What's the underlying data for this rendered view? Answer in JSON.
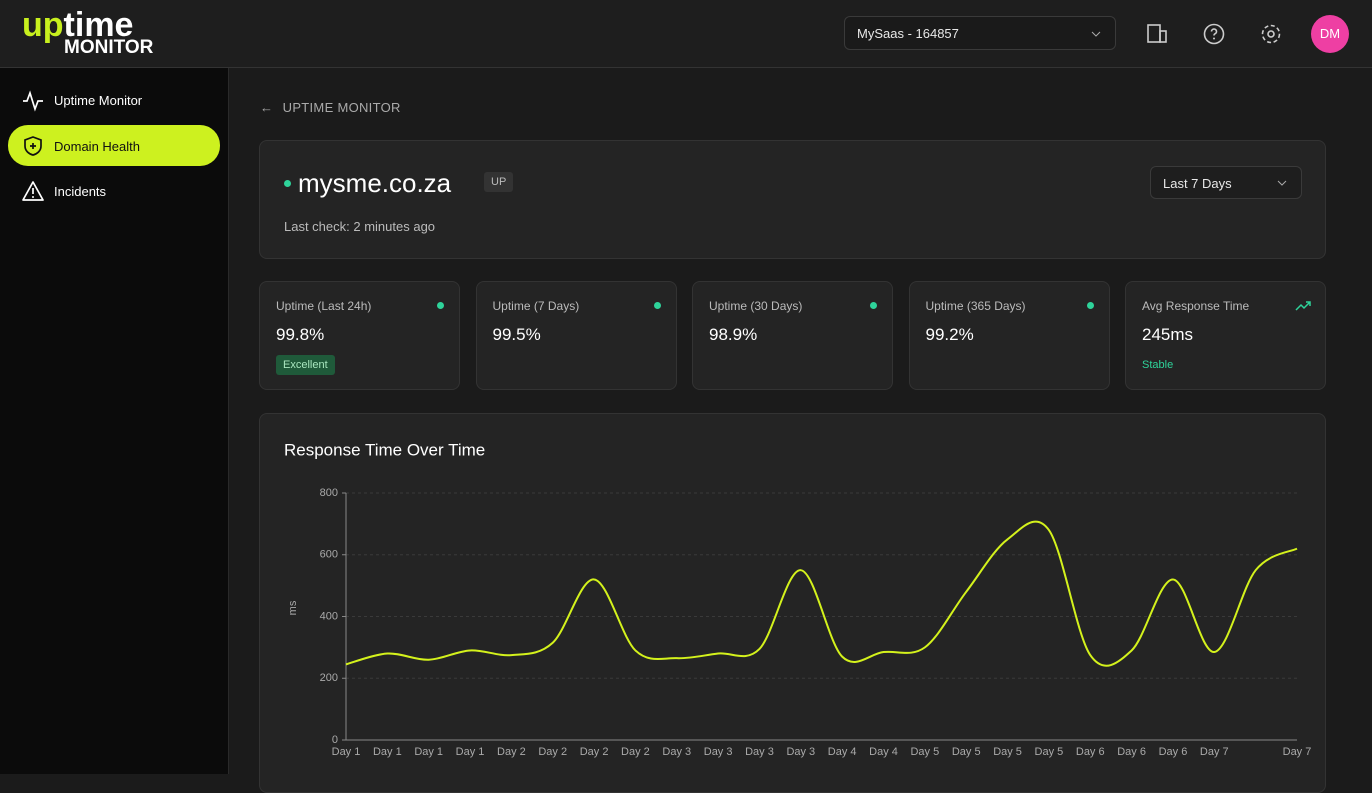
{
  "header": {
    "logo_accent": "up",
    "logo_text": "time",
    "logo_sub": "MONITOR",
    "workspace": "MySaas - 164857",
    "avatar": "DM"
  },
  "sidebar": {
    "items": [
      "Uptime Monitor",
      "Domain Health",
      "Incidents"
    ]
  },
  "breadcrumb": "UPTIME MONITOR",
  "domain": {
    "name": "mysme.co.za",
    "status": "UP",
    "last_check": "Last check: 2 minutes ago",
    "range": "Last 7 Days"
  },
  "stats": [
    {
      "label": "Uptime (Last 24h)",
      "value": "99.8%",
      "badge": "Excellent"
    },
    {
      "label": "Uptime (7 Days)",
      "value": "99.5%"
    },
    {
      "label": "Uptime (30 Days)",
      "value": "98.9%"
    },
    {
      "label": "Uptime (365 Days)",
      "value": "99.2%"
    },
    {
      "label": "Avg Response Time",
      "value": "245ms",
      "note": "Stable"
    }
  ],
  "chart_data": {
    "type": "line",
    "title": "Response Time Over Time",
    "y_label": "ms",
    "categories": [
      "Day 1",
      "Day 1",
      "Day 1",
      "Day 1",
      "Day 2",
      "Day 2",
      "Day 2",
      "Day 2",
      "Day 3",
      "Day 3",
      "Day 3",
      "Day 3",
      "Day 4",
      "Day 4",
      "Day 5",
      "Day 5",
      "Day 5",
      "Day 5",
      "Day 6",
      "Day 6",
      "Day 6",
      "Day 7",
      null,
      "Day 7"
    ],
    "values": [
      245,
      280,
      260,
      290,
      275,
      315,
      520,
      290,
      265,
      280,
      295,
      550,
      270,
      285,
      300,
      480,
      650,
      680,
      275,
      290,
      520,
      285,
      550,
      620
    ],
    "color": "#d4f21c",
    "ylim": [
      0,
      800
    ],
    "yticks": [
      0,
      200,
      400,
      600,
      800
    ],
    "grid": true
  }
}
